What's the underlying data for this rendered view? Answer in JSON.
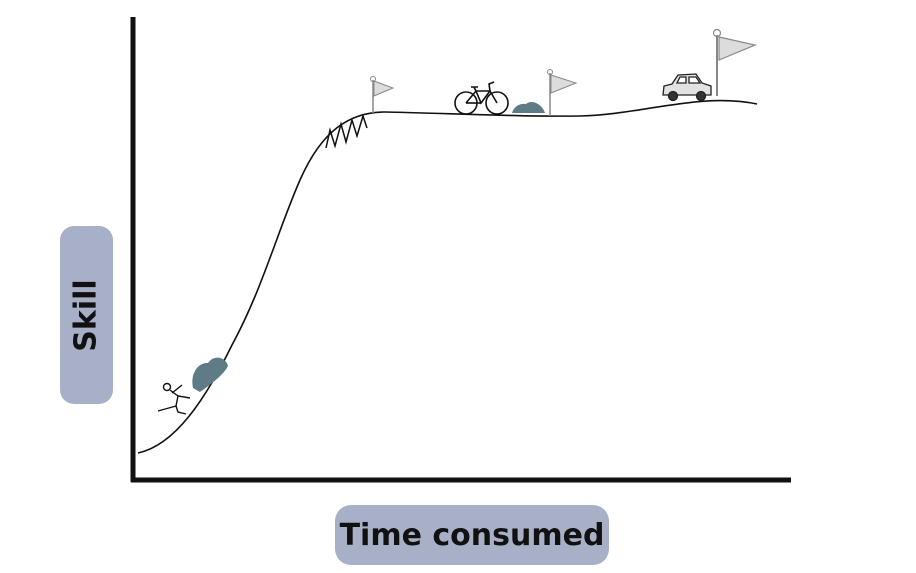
{
  "labels": {
    "y_axis": "Skill",
    "x_axis": "Time consumed"
  },
  "colors": {
    "label_bg": "#a8b0c8",
    "line": "#111111",
    "flag": "#8a8a8a",
    "bush": "#5e7b86"
  },
  "icons": [
    "stick-figure-icon",
    "bush-icon",
    "spring-icon",
    "flag-icon",
    "bicycle-icon",
    "car-icon"
  ]
}
